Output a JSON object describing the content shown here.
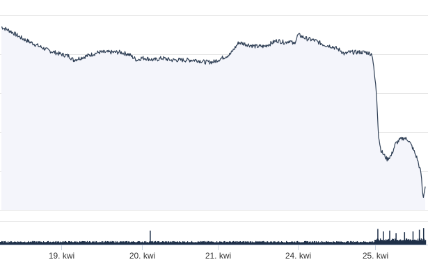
{
  "chart_data": {
    "type": "line",
    "title": "",
    "xlabel": "",
    "ylabel": "",
    "x_ticks": [
      "19. kwi",
      "20. kwi",
      "21. kwi",
      "24. kwi",
      "25. kwi"
    ],
    "grid": true,
    "legend": "none",
    "colors": {
      "line": "#2f3f55",
      "area": "#f4f5fb",
      "volume": "#1f3049",
      "grid": "#e6e6e6",
      "axis": "#c8d2e0",
      "tick_text": "#333333"
    },
    "price_series": {
      "x": [
        0,
        0.02,
        0.05,
        0.08,
        0.11,
        0.14,
        0.16,
        0.17,
        0.2,
        0.23,
        0.25,
        0.28,
        0.3,
        0.32,
        0.33,
        0.34,
        0.36,
        0.38,
        0.4,
        0.42,
        0.44,
        0.46,
        0.48,
        0.5,
        0.52,
        0.54,
        0.55,
        0.56,
        0.58,
        0.6,
        0.62,
        0.64,
        0.65,
        0.67,
        0.68,
        0.69,
        0.7,
        0.72,
        0.74,
        0.75,
        0.76,
        0.78,
        0.8,
        0.81,
        0.82,
        0.83,
        0.84,
        0.86,
        0.875,
        0.885,
        0.89,
        0.895,
        0.9,
        0.91,
        0.92,
        0.93,
        0.94,
        0.95,
        0.96,
        0.97,
        0.98,
        0.99,
        0.995,
        1.0
      ],
      "y": [
        94,
        92,
        88,
        85,
        82,
        80,
        79,
        77,
        79,
        81,
        81,
        81,
        80,
        77,
        78,
        78,
        77,
        78,
        77,
        77,
        77,
        77,
        76,
        76,
        78,
        80,
        83,
        86,
        85,
        84,
        84,
        86,
        87,
        86,
        87,
        85,
        90,
        88,
        87,
        86,
        85,
        84,
        82,
        80,
        81,
        81,
        81,
        81,
        80,
        60,
        38,
        31,
        29,
        26,
        28,
        34,
        36,
        37,
        36,
        32,
        27,
        19,
        6,
        12
      ]
    },
    "y_range": [
      0,
      100
    ],
    "y_grid_values": [
      0,
      20,
      40,
      60,
      80,
      100
    ],
    "volume_series": {
      "normal_level": 0.35,
      "spike_region_start": 0.88,
      "spike_level": 0.6,
      "spikes": [
        {
          "x": 0.887,
          "v": 0.95
        },
        {
          "x": 0.9,
          "v": 0.8
        },
        {
          "x": 0.915,
          "v": 0.85
        },
        {
          "x": 0.93,
          "v": 0.7
        },
        {
          "x": 0.95,
          "v": 0.75
        },
        {
          "x": 0.97,
          "v": 0.8
        },
        {
          "x": 0.985,
          "v": 0.9
        },
        {
          "x": 0.995,
          "v": 1.0
        },
        {
          "x": 0.35,
          "v": 0.85
        }
      ]
    }
  }
}
